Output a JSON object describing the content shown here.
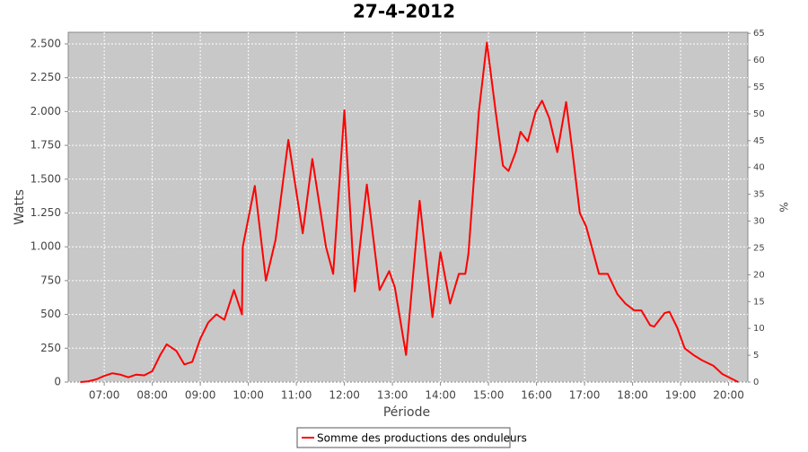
{
  "chart_data": {
    "type": "line",
    "title": "27-4-2012",
    "xlabel": "Période",
    "ylabel": "Watts",
    "y2label": "%",
    "x": [
      "06:30",
      "06:40",
      "06:50",
      "07:00",
      "07:10",
      "07:20",
      "07:30",
      "07:40",
      "07:50",
      "08:00",
      "08:10",
      "08:18",
      "08:30",
      "08:40",
      "08:50",
      "09:00",
      "09:10",
      "09:20",
      "09:30",
      "09:42",
      "09:52",
      "09:53",
      "10:08",
      "10:22",
      "10:34",
      "10:50",
      "11:08",
      "11:20",
      "11:37",
      "11:46",
      "12:00",
      "12:13",
      "12:28",
      "12:44",
      "12:56",
      "13:03",
      "13:17",
      "13:34",
      "13:50",
      "14:00",
      "14:12",
      "14:23",
      "14:31",
      "14:35",
      "14:48",
      "14:58",
      "15:09",
      "15:18",
      "15:25",
      "15:34",
      "15:40",
      "15:49",
      "15:59",
      "16:07",
      "16:16",
      "16:26",
      "16:37",
      "16:45",
      "16:54",
      "17:02",
      "17:09",
      "17:18",
      "17:29",
      "17:41",
      "17:51",
      "18:02",
      "18:11",
      "18:22",
      "18:27",
      "18:40",
      "18:46",
      "18:56",
      "19:05",
      "19:16",
      "19:27",
      "19:41",
      "19:52",
      "20:02",
      "20:12"
    ],
    "series": [
      {
        "name": "Somme des productions des onduleurs",
        "color": "#ff0000",
        "axis": "y",
        "values": [
          0,
          5,
          20,
          45,
          65,
          55,
          35,
          55,
          50,
          80,
          200,
          279,
          230,
          130,
          150,
          320,
          440,
          500,
          460,
          680,
          500,
          1000,
          1450,
          750,
          1050,
          1790,
          1100,
          1650,
          1000,
          800,
          2010,
          670,
          1460,
          680,
          820,
          700,
          200,
          1340,
          480,
          960,
          580,
          800,
          800,
          950,
          2000,
          2510,
          2000,
          1600,
          1560,
          1700,
          1850,
          1780,
          2000,
          2080,
          1950,
          1700,
          2070,
          1700,
          1250,
          1150,
          1000,
          800,
          800,
          650,
          580,
          530,
          530,
          420,
          410,
          510,
          520,
          400,
          250,
          200,
          160,
          120,
          60,
          30,
          0
        ]
      }
    ],
    "xlim": [
      "06:15",
      "20:24"
    ],
    "xticks": [
      "07:00",
      "08:00",
      "09:00",
      "10:00",
      "11:00",
      "12:00",
      "13:00",
      "14:00",
      "15:00",
      "16:00",
      "17:00",
      "18:00",
      "19:00",
      "20:00"
    ],
    "ylim": [
      0,
      2586
    ],
    "yticks": [
      0,
      250,
      500,
      750,
      {
        "value": 1000,
        "label": "1.000"
      },
      {
        "value": 1250,
        "label": "1.250"
      },
      {
        "value": 1500,
        "label": "1.500"
      },
      {
        "value": 1750,
        "label": "1.750"
      },
      {
        "value": 2000,
        "label": "2.000"
      },
      {
        "value": 2250,
        "label": "2.250"
      },
      {
        "value": 2500,
        "label": "2.500"
      }
    ],
    "y2lim": [
      0,
      65.2
    ],
    "y2ticks": [
      0,
      5,
      10,
      15,
      20,
      25,
      30,
      35,
      40,
      45,
      50,
      55,
      60,
      65
    ],
    "grid": true
  }
}
